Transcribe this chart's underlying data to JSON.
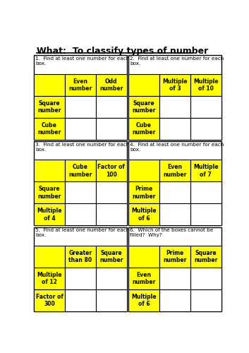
{
  "title": "What:  To classify types of number",
  "yellow": "#FFFF00",
  "white": "#FFFFFF",
  "black": "#000000",
  "bg": "#FFFFFF",
  "grids": [
    {
      "number": "1",
      "instruction": "Find at least one number for each\nbox.",
      "col_headers": [
        "Even\nnumber",
        "Odd\nnumber"
      ],
      "row_headers": [
        "Square\nnumber",
        "Cube\nnumber"
      ]
    },
    {
      "number": "2",
      "instruction": "Find at least one number for each\nbox.",
      "col_headers": [
        "Multiple\nof 3",
        "Multiple\nof 10"
      ],
      "row_headers": [
        "Square\nnumber",
        "Cube\nnumber"
      ]
    },
    {
      "number": "3",
      "instruction": "Find at least one number for each\nbox.",
      "col_headers": [
        "Cube\nnumber",
        "Factor of\n100"
      ],
      "row_headers": [
        "Square\nnumber",
        "Multiple\nof 4"
      ]
    },
    {
      "number": "4",
      "instruction": "Find at least one number for each\nbox.",
      "col_headers": [
        "Even\nnumber",
        "Multiple\nof 7"
      ],
      "row_headers": [
        "Prime\nnumber",
        "Multiple\nof 6"
      ]
    },
    {
      "number": "5",
      "instruction": "Find at least one number for each\nbox.",
      "col_headers": [
        "Greater\nthan 80",
        "Square\nnumber"
      ],
      "row_headers": [
        "Multiple\nof 12",
        "Factor of\n300"
      ]
    },
    {
      "number": "6",
      "instruction": "Which of the boxes cannot be\nfilled?  Why?",
      "col_headers": [
        "Prime\nnumber",
        "Square\nnumber"
      ],
      "row_headers": [
        "Even\nnumber",
        "Multiple\nof 6"
      ]
    }
  ]
}
